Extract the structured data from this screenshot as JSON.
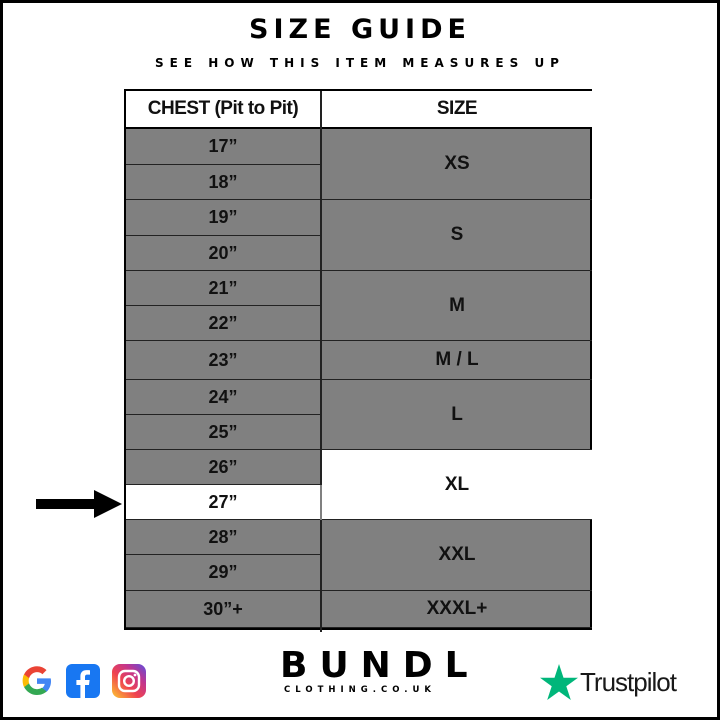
{
  "title": "SIZE GUIDE",
  "subtitle": "SEE HOW THIS ITEM MEASURES UP",
  "table": {
    "headers": [
      "CHEST (Pit to Pit)",
      "SIZE"
    ],
    "chest": [
      "17”",
      "18”",
      "19”",
      "20”",
      "21”",
      "22”",
      "23”",
      "24”",
      "25”",
      "26”",
      "27”",
      "28”",
      "29”",
      "30”+"
    ],
    "sizes": [
      "XS",
      "S",
      "M",
      "M / L",
      "L",
      "XL",
      "XXL",
      "XXXL+"
    ],
    "highlighted_chest": "27”",
    "highlighted_size": "XL"
  },
  "colors": {
    "cell": "#808080",
    "highlight": "#ffffff",
    "trustpilot": "#00b67a"
  },
  "footer": {
    "brand": "BUNDL",
    "domain": "CLOTHING.CO.UK",
    "trustpilot": "Trustpilot",
    "social_icons": [
      "google-icon",
      "facebook-icon",
      "instagram-icon"
    ]
  }
}
